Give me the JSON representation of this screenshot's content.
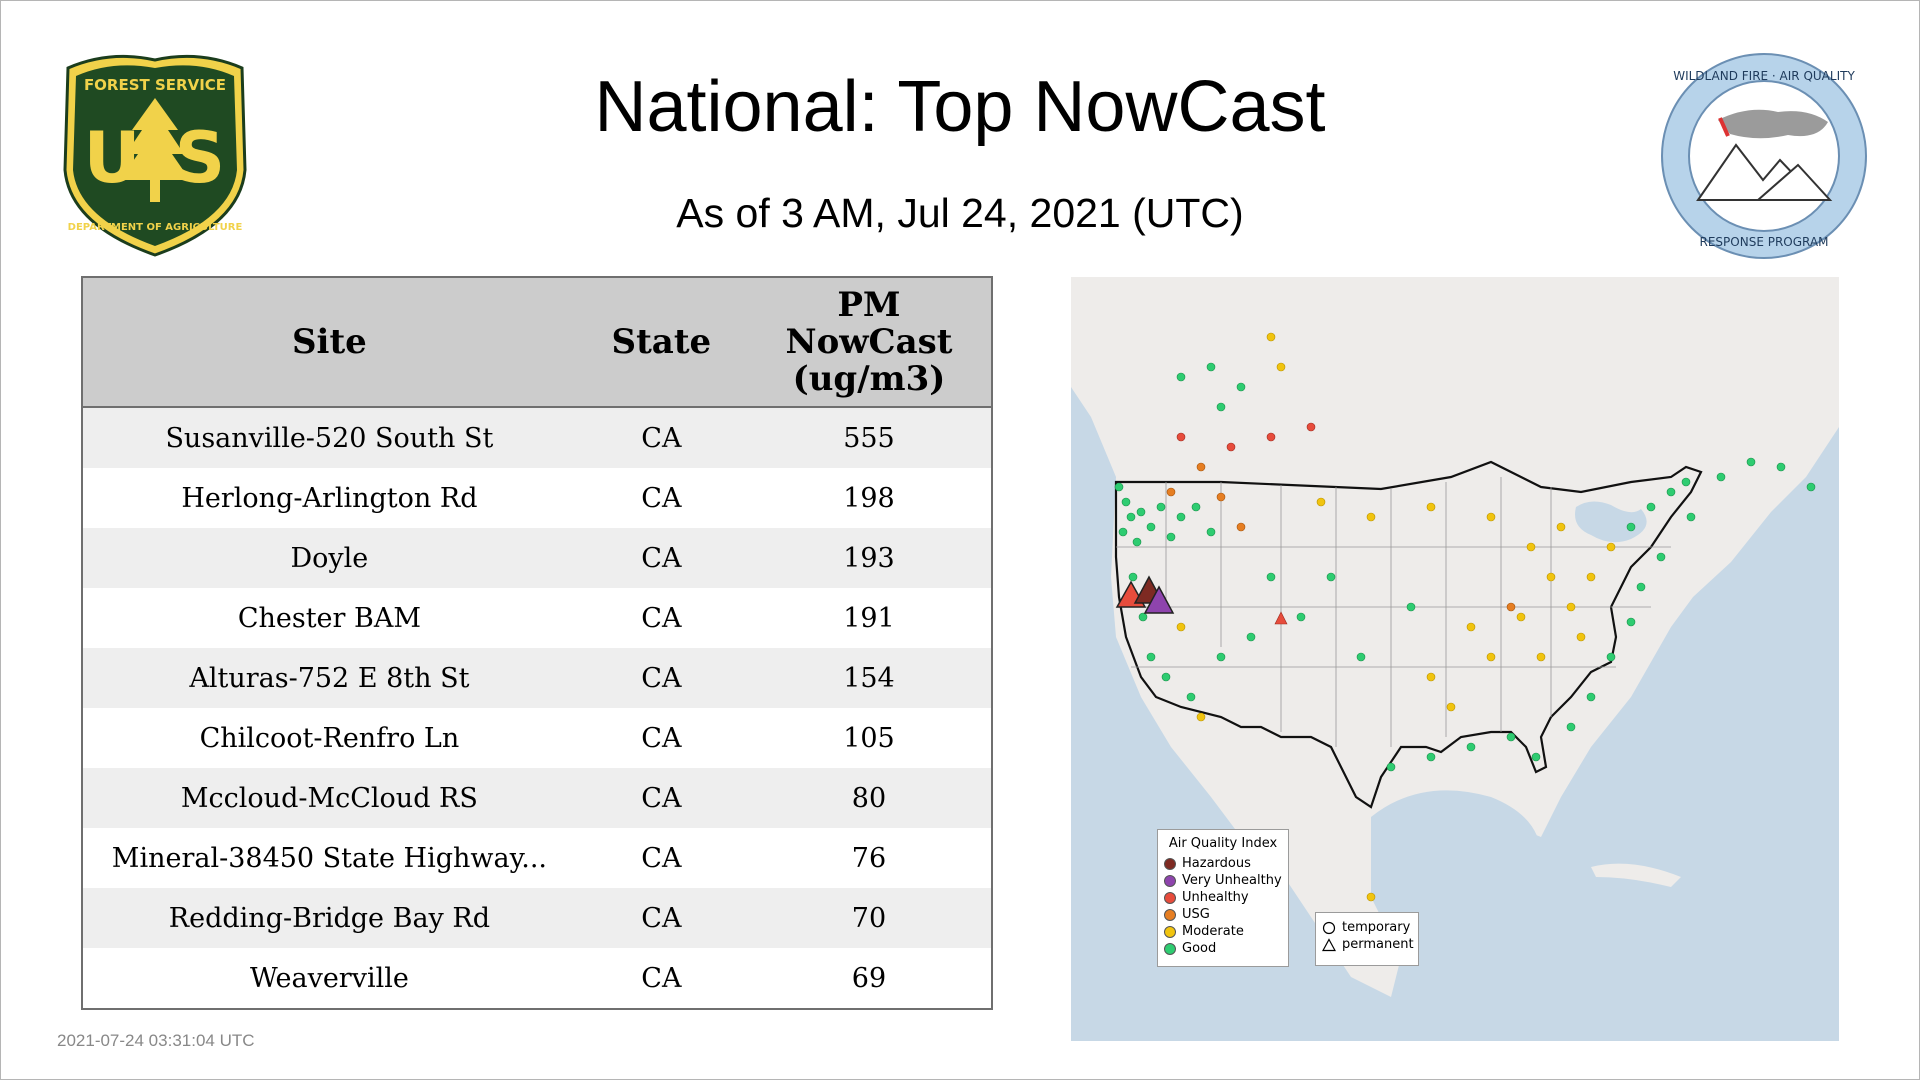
{
  "header": {
    "title": "National: Top NowCast",
    "subtitle": "As of  3 AM, Jul 24, 2021 (UTC)"
  },
  "logos": {
    "left": {
      "icon": "usda-forest-service-shield-icon",
      "text_top": "FOREST SERVICE",
      "letters": "U S",
      "text_bottom": "DEPARTMENT OF AGRICULTURE"
    },
    "right": {
      "icon": "wildland-fire-air-quality-logo-icon",
      "text_top": "WILDLAND FIRE · AIR QUALITY",
      "text_bottom": "RESPONSE PROGRAM"
    }
  },
  "table": {
    "headers": {
      "site": "Site",
      "state": "State",
      "pm_line1": "PM",
      "pm_line2": "NowCast",
      "pm_line3": "(ug/m3)"
    },
    "rows": [
      {
        "site": "Susanville-520 South St",
        "state": "CA",
        "pm": "555"
      },
      {
        "site": "Herlong-Arlington Rd",
        "state": "CA",
        "pm": "198"
      },
      {
        "site": "Doyle",
        "state": "CA",
        "pm": "193"
      },
      {
        "site": "Chester BAM",
        "state": "CA",
        "pm": "191"
      },
      {
        "site": "Alturas-752 E 8th St",
        "state": "CA",
        "pm": "154"
      },
      {
        "site": "Chilcoot-Renfro Ln",
        "state": "CA",
        "pm": "105"
      },
      {
        "site": "Mccloud-McCloud RS",
        "state": "CA",
        "pm": "80"
      },
      {
        "site": "Mineral-38450 State Highway...",
        "state": "CA",
        "pm": "76"
      },
      {
        "site": "Redding-Bridge Bay Rd",
        "state": "CA",
        "pm": "70"
      },
      {
        "site": "Weaverville",
        "state": "CA",
        "pm": "69"
      }
    ]
  },
  "map": {
    "legend": {
      "title": "Air Quality Index",
      "items": [
        {
          "label": "Hazardous",
          "color": "#7e2a22"
        },
        {
          "label": "Very Unhealthy",
          "color": "#8e44ad"
        },
        {
          "label": "Unhealthy",
          "color": "#e74c3c"
        },
        {
          "label": "USG",
          "color": "#e67e22"
        },
        {
          "label": "Moderate",
          "color": "#f1c40f"
        },
        {
          "label": "Good",
          "color": "#2ecc71"
        }
      ]
    },
    "symbol_legend": {
      "items": [
        {
          "label": "temporary",
          "icon": "circle-outline-icon"
        },
        {
          "label": "permanent",
          "icon": "triangle-outline-icon"
        }
      ]
    },
    "colors": {
      "water": "#c7d8e6",
      "land": "#eeecea",
      "border": "#111111"
    }
  },
  "footer": {
    "timestamp": "2021-07-24 03:31:04 UTC"
  }
}
